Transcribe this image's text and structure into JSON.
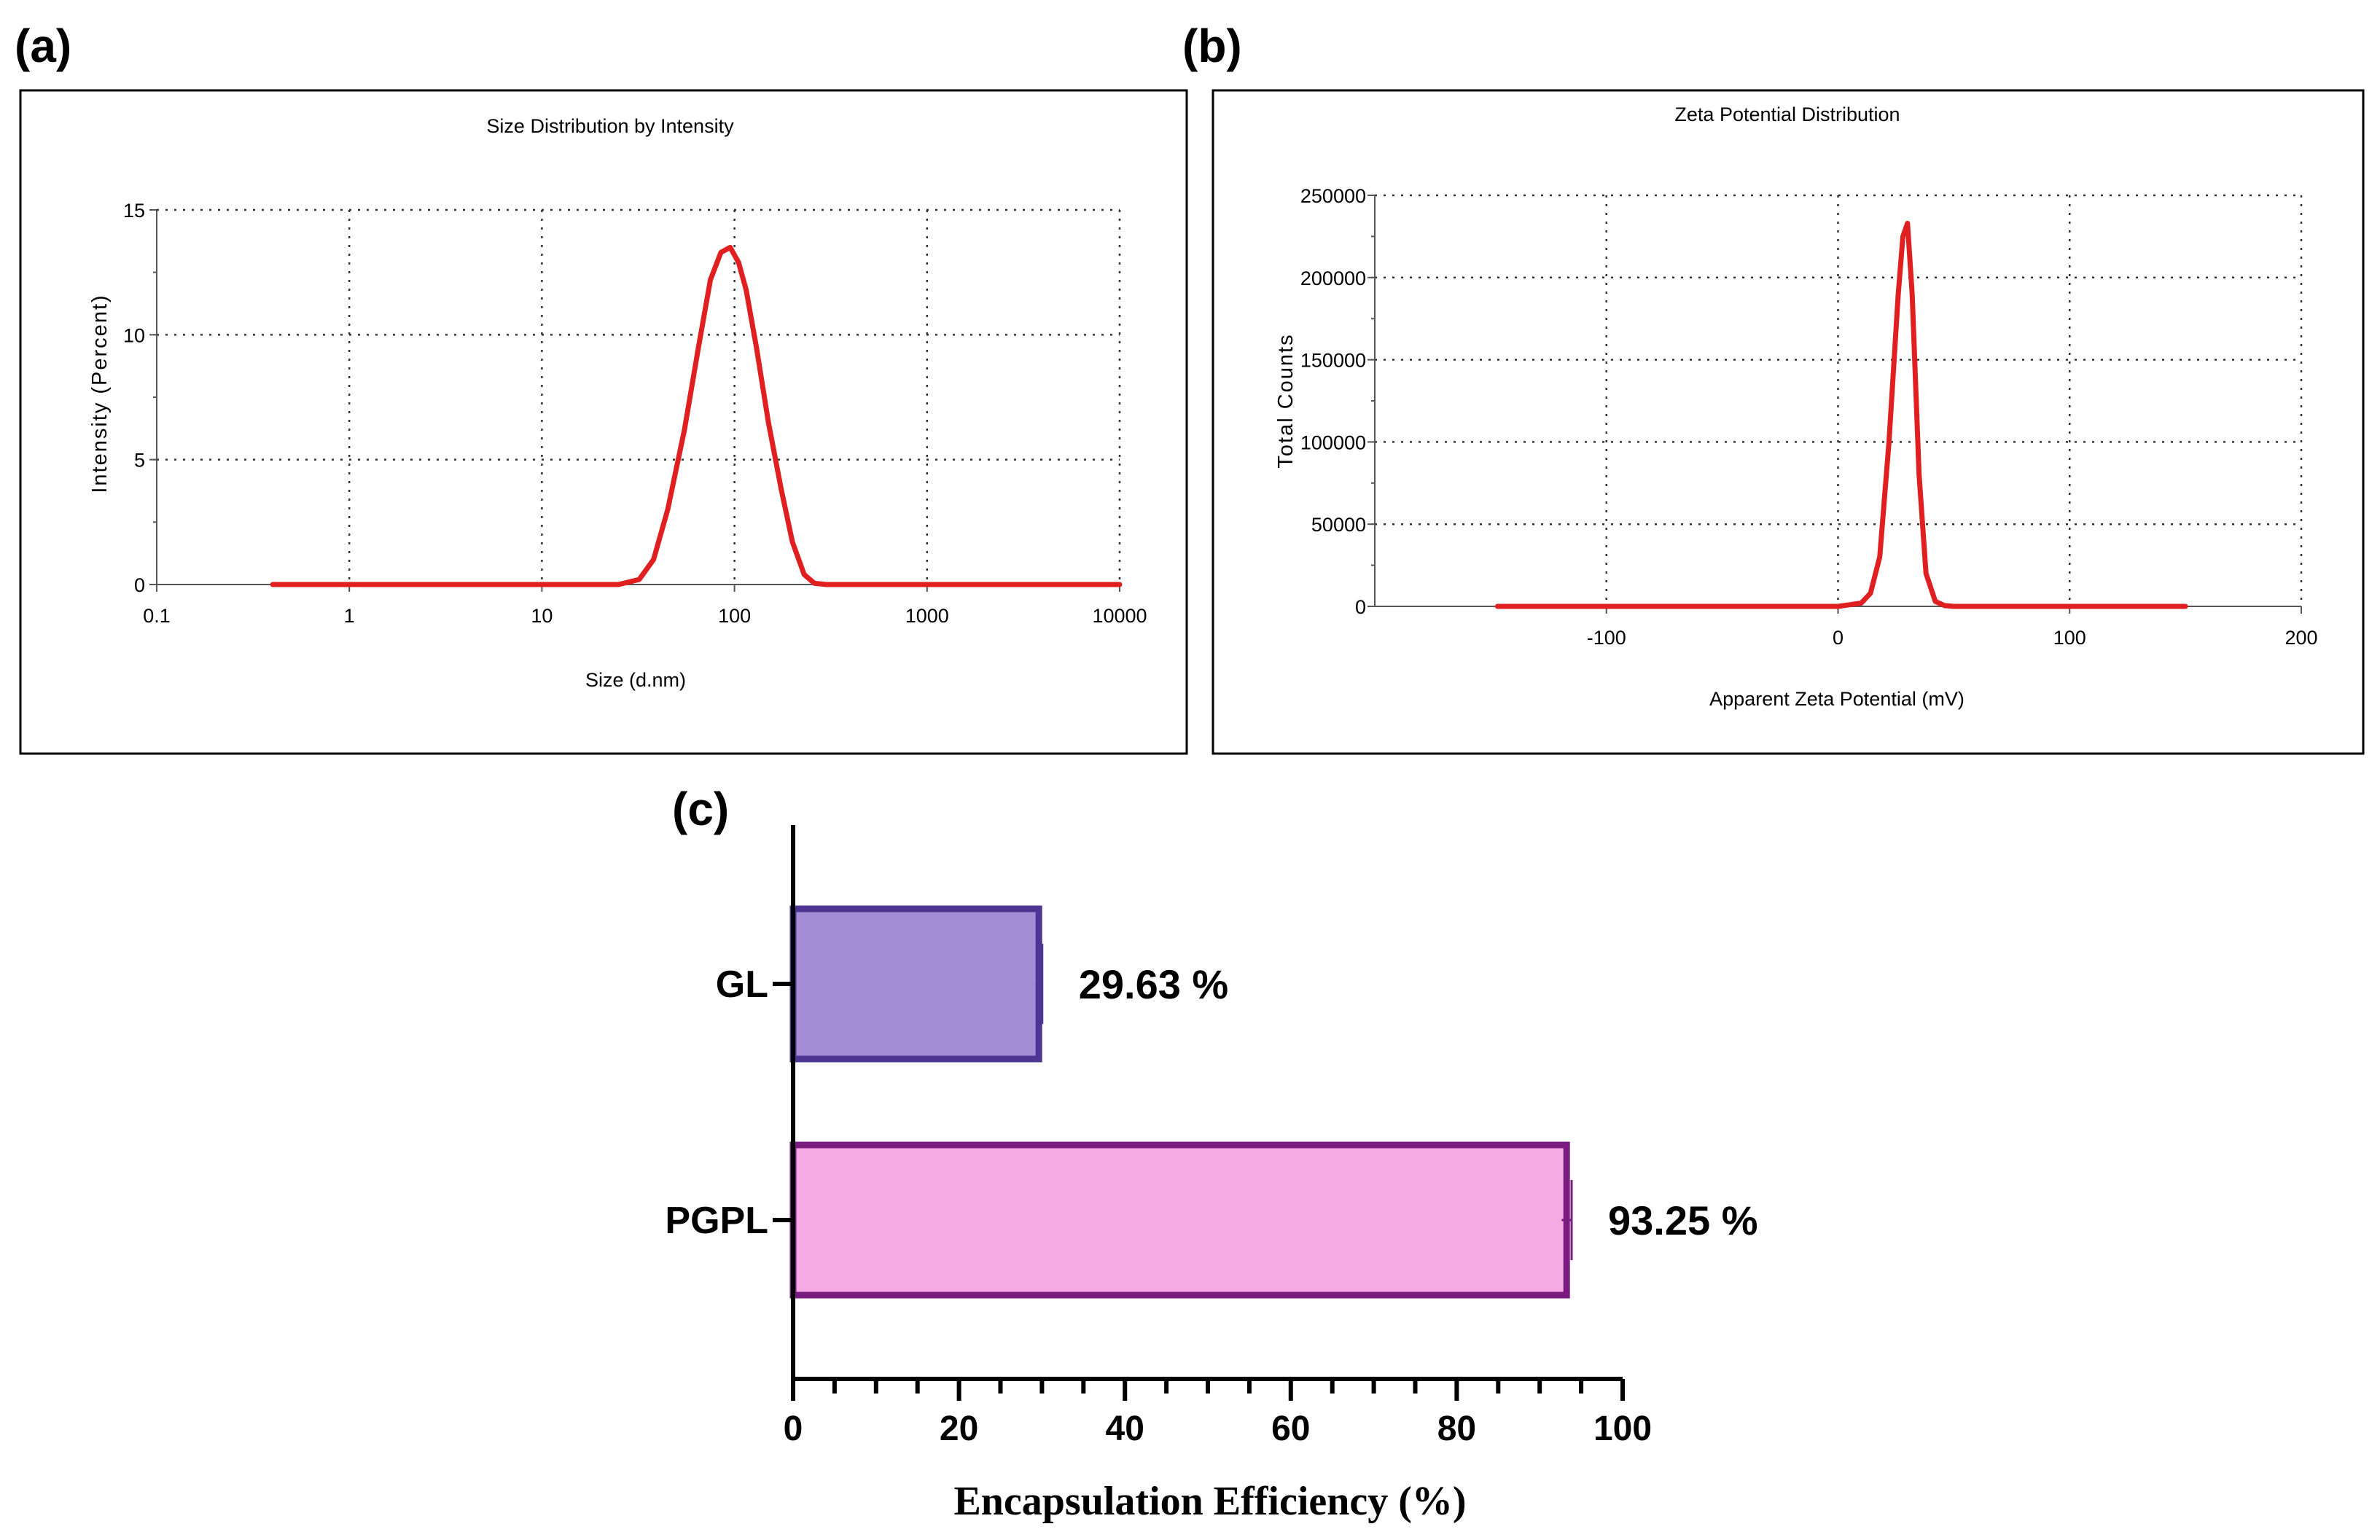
{
  "panels": {
    "a": "(a)",
    "b": "(b)",
    "c": "(c)"
  },
  "chart_data": [
    {
      "id": "a",
      "type": "line",
      "title": "Size Distribution by Intensity",
      "xlabel": "Size (d.nm)",
      "ylabel": "Intensity (Percent)",
      "xscale": "log",
      "xlim": [
        0.1,
        10000
      ],
      "ylim": [
        0,
        15
      ],
      "xticks": [
        0.1,
        1,
        10,
        100,
        1000,
        10000
      ],
      "xtick_labels": [
        "0.1",
        "1",
        "10",
        "100",
        "1000",
        "10000"
      ],
      "yticks": [
        0,
        5,
        10,
        15
      ],
      "ytick_labels": [
        "0",
        "5",
        "10",
        "15"
      ],
      "grid": true,
      "color": "#e02020",
      "series": [
        {
          "name": "Intensity",
          "x": [
            0.4,
            1,
            10,
            25,
            32,
            38,
            45,
            55,
            65,
            75,
            85,
            95,
            105,
            115,
            130,
            150,
            175,
            200,
            230,
            260,
            300,
            1000,
            10000
          ],
          "y": [
            0,
            0,
            0,
            0,
            0.2,
            1,
            3,
            6.2,
            9.5,
            12.2,
            13.3,
            13.5,
            12.9,
            11.8,
            9.5,
            6.5,
            3.8,
            1.7,
            0.4,
            0.05,
            0,
            0,
            0
          ]
        }
      ]
    },
    {
      "id": "b",
      "type": "line",
      "title": "Zeta Potential Distribution",
      "xlabel": "Apparent Zeta Potential (mV)",
      "ylabel": "Total Counts",
      "xlim": [
        -200,
        200
      ],
      "ylim": [
        0,
        250000
      ],
      "xticks": [
        -100,
        0,
        100,
        200
      ],
      "xtick_labels": [
        "-100",
        "0",
        "100",
        "200"
      ],
      "yticks": [
        0,
        50000,
        100000,
        150000,
        200000,
        250000
      ],
      "ytick_labels": [
        "0",
        "50000",
        "100000",
        "150000",
        "200000",
        "250000"
      ],
      "grid": true,
      "color": "#e02020",
      "series": [
        {
          "name": "Total Counts",
          "x": [
            -147,
            0,
            10,
            14,
            18,
            22,
            26,
            28,
            30,
            32,
            35,
            38,
            42,
            46,
            50,
            150
          ],
          "y": [
            0,
            0,
            2000,
            8000,
            30000,
            100000,
            190000,
            225000,
            233000,
            190000,
            80000,
            20000,
            3000,
            500,
            0,
            0
          ]
        }
      ]
    },
    {
      "id": "c",
      "type": "bar",
      "orientation": "horizontal",
      "xlabel": "Encapsulation Efficiency (%)",
      "ylabel": "",
      "xlim": [
        0,
        100
      ],
      "xticks": [
        0,
        20,
        40,
        60,
        80,
        100
      ],
      "xtick_labels": [
        "0",
        "20",
        "40",
        "60",
        "80",
        "100"
      ],
      "categories": [
        "GL",
        "PGPL"
      ],
      "values": [
        29.63,
        93.25
      ],
      "error": [
        0.4,
        0.6
      ],
      "value_labels": [
        "29.63 %",
        "93.25 %"
      ],
      "fill_colors": [
        "#a48dd4",
        "#f5aae4"
      ],
      "edge_colors": [
        "#4e3593",
        "#7a1b80"
      ]
    }
  ]
}
